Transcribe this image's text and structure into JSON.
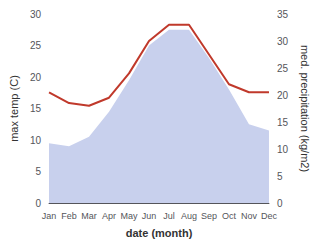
{
  "chart_data": {
    "type": "line",
    "categories": [
      "Jan",
      "Feb",
      "Mar",
      "Apr",
      "May",
      "Jun",
      "Jul",
      "Aug",
      "Sep",
      "Oct",
      "Nov",
      "Dec"
    ],
    "xlabel": "date (month)",
    "ylabel": "max temp (C)",
    "y2label": "med. precipitation (kg/m2)",
    "series": [
      {
        "type": "area",
        "color": "#c8d0ed",
        "values": [
          9.5,
          9.0,
          10.5,
          14.5,
          19.5,
          25.0,
          27.5,
          27.5,
          23.0,
          18.0,
          12.5,
          11.5
        ]
      },
      {
        "type": "line",
        "axis": "y2",
        "color": "#c0392b",
        "values": [
          20.5,
          18.5,
          18.0,
          19.5,
          24.0,
          30.0,
          33.0,
          33.0,
          27.5,
          22.0,
          20.5,
          20.5
        ]
      }
    ],
    "ylim": [
      0,
      30
    ],
    "yticks": [
      0,
      5,
      10,
      15,
      20,
      25,
      30
    ],
    "y2lim": [
      0,
      35
    ],
    "y2ticks": [
      0,
      5,
      10,
      15,
      20,
      25,
      30,
      35
    ],
    "grid": false
  }
}
